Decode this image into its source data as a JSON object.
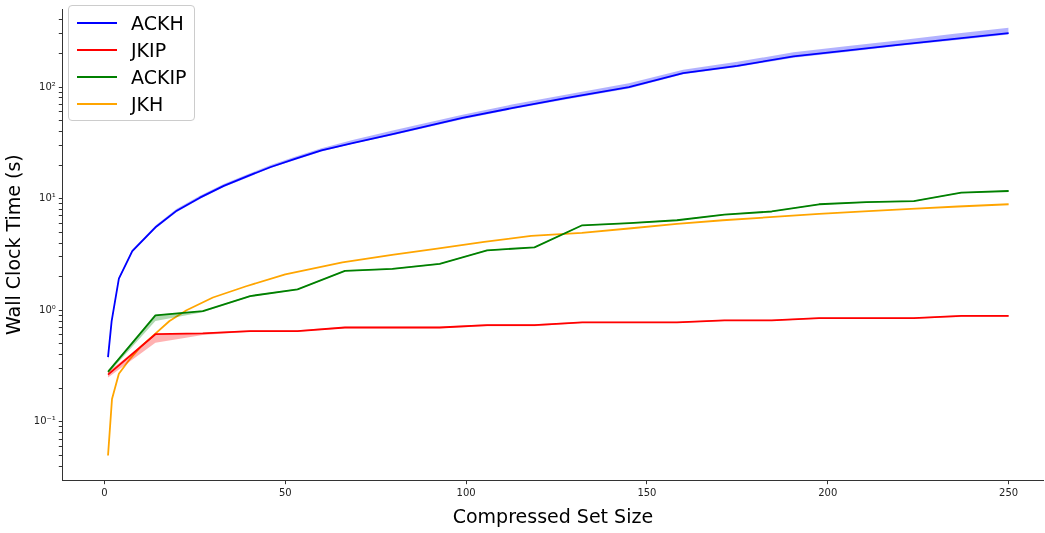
{
  "chart_data": {
    "type": "line",
    "xlabel": "Compressed Set Size",
    "ylabel": "Wall Clock Time (s)",
    "log": "y",
    "grid": false,
    "legend": "top left",
    "marker": "none",
    "line_style": "solid",
    "xlim": [
      -11.5,
      259.5
    ],
    "xticks": [
      0,
      50,
      100,
      150,
      200,
      250
    ],
    "ylim": [
      0.03,
      500
    ],
    "yticks": [
      {
        "value": 0.04,
        "label": null
      },
      {
        "value": 0.05,
        "label": null
      },
      {
        "value": 0.06,
        "label": null
      },
      {
        "value": 0.07,
        "label": null
      },
      {
        "value": 0.08,
        "label": null
      },
      {
        "value": 0.09,
        "label": null
      },
      {
        "value": 0.1,
        "label": "10⁻¹"
      },
      {
        "value": 0.2,
        "label": null
      },
      {
        "value": 0.3,
        "label": null
      },
      {
        "value": 0.4,
        "label": null
      },
      {
        "value": 0.5,
        "label": null
      },
      {
        "value": 0.6,
        "label": null
      },
      {
        "value": 0.7,
        "label": null
      },
      {
        "value": 0.8,
        "label": null
      },
      {
        "value": 0.9,
        "label": null
      },
      {
        "value": 1,
        "label": "10⁰"
      },
      {
        "value": 2,
        "label": null
      },
      {
        "value": 3,
        "label": null
      },
      {
        "value": 4,
        "label": null
      },
      {
        "value": 5,
        "label": null
      },
      {
        "value": 6,
        "label": null
      },
      {
        "value": 7,
        "label": null
      },
      {
        "value": 8,
        "label": null
      },
      {
        "value": 9,
        "label": null
      },
      {
        "value": 10,
        "label": "10¹"
      },
      {
        "value": 20,
        "label": null
      },
      {
        "value": 30,
        "label": null
      },
      {
        "value": 40,
        "label": null
      },
      {
        "value": 50,
        "label": null
      },
      {
        "value": 60,
        "label": null
      },
      {
        "value": 70,
        "label": null
      },
      {
        "value": 80,
        "label": null
      },
      {
        "value": 90,
        "label": null
      },
      {
        "value": 100,
        "label": "10²"
      },
      {
        "value": 200,
        "label": null
      },
      {
        "value": 300,
        "label": null
      },
      {
        "value": 400,
        "label": null
      }
    ],
    "series": [
      {
        "name": "ACKH",
        "color": "#0000ff",
        "x": [
          1,
          2,
          4,
          7.7,
          14.3,
          20,
          26.4,
          33,
          39.6,
          46,
          52.7,
          60,
          68.6,
          80,
          99,
          113,
          127.1,
          145,
          160,
          175,
          190.5,
          205,
          220,
          235,
          250
        ],
        "values": [
          0.38,
          0.8,
          1.92,
          3.38,
          5.6,
          7.8,
          10.2,
          13,
          15.9,
          19.2,
          22.7,
          27,
          31.5,
          38,
          52.8,
          65,
          79,
          100,
          133,
          155,
          188,
          212,
          240,
          270,
          304
        ],
        "lower": [
          0.35,
          0.78,
          1.88,
          3.3,
          5.45,
          7.6,
          9.9,
          12.7,
          15.5,
          18.8,
          22.2,
          26.5,
          31,
          37.2,
          51.5,
          63.5,
          77,
          97,
          130,
          151,
          183,
          206,
          234,
          263,
          296
        ],
        "upper": [
          0.4,
          0.82,
          1.98,
          3.5,
          5.8,
          8.1,
          10.6,
          13.5,
          16.5,
          20,
          23.7,
          28.3,
          33.5,
          41,
          56.5,
          70,
          85,
          108,
          143,
          168,
          205,
          232,
          263,
          300,
          340
        ]
      },
      {
        "name": "JKIP",
        "color": "#ff0000",
        "x": [
          1,
          14.1,
          27.2,
          40.3,
          53.4,
          66.5,
          79.6,
          92.7,
          105.8,
          118.9,
          132.1,
          145.2,
          158.3,
          171.4,
          184.5,
          197.6,
          210.7,
          223.8,
          236.9,
          250
        ],
        "values": [
          0.265,
          0.61,
          0.62,
          0.65,
          0.65,
          0.7,
          0.7,
          0.7,
          0.735,
          0.735,
          0.78,
          0.78,
          0.78,
          0.81,
          0.81,
          0.85,
          0.85,
          0.85,
          0.89,
          0.89
        ],
        "lower": [
          0.25,
          0.51,
          0.6,
          0.64,
          0.64,
          0.69,
          0.69,
          0.69,
          0.72,
          0.72,
          0.77,
          0.77,
          0.77,
          0.8,
          0.8,
          0.84,
          0.84,
          0.84,
          0.87,
          0.87
        ],
        "upper": [
          0.28,
          0.61,
          0.63,
          0.66,
          0.66,
          0.71,
          0.71,
          0.71,
          0.75,
          0.75,
          0.79,
          0.79,
          0.79,
          0.82,
          0.82,
          0.86,
          0.86,
          0.86,
          0.9,
          0.9
        ]
      },
      {
        "name": "ACKIP",
        "color": "#008000",
        "x": [
          1,
          14.1,
          27.2,
          40.3,
          53.4,
          66.5,
          79.6,
          92.7,
          105.8,
          118.9,
          132.1,
          145.2,
          158.3,
          171.4,
          184.5,
          197.6,
          210.7,
          223.8,
          236.9,
          250
        ],
        "values": [
          0.28,
          0.9,
          0.98,
          1.34,
          1.54,
          2.25,
          2.35,
          2.6,
          3.44,
          3.66,
          5.77,
          6.03,
          6.4,
          7.2,
          7.67,
          8.9,
          9.3,
          9.5,
          11.3,
          11.7
        ],
        "lower": [
          0.27,
          0.8,
          0.96,
          1.32,
          1.52,
          2.22,
          2.32,
          2.57,
          3.4,
          3.62,
          5.7,
          5.96,
          6.33,
          7.12,
          7.6,
          8.8,
          9.2,
          9.4,
          11.2,
          11.6
        ],
        "upper": [
          0.29,
          0.91,
          0.99,
          1.36,
          1.56,
          2.28,
          2.38,
          2.63,
          3.48,
          3.7,
          5.84,
          6.1,
          6.47,
          7.28,
          7.75,
          9,
          9.4,
          9.6,
          11.4,
          11.8
        ]
      },
      {
        "name": "JKH",
        "color": "#ffa500",
        "x": [
          1,
          2.1,
          4,
          6.9,
          10,
          13.4,
          18,
          22.7,
          30,
          39.2,
          50,
          65.8,
          80,
          92,
          105,
          118,
          132,
          145,
          158.3,
          171,
          185,
          197.6,
          210,
          223,
          236,
          250
        ],
        "values": [
          0.05,
          0.16,
          0.27,
          0.36,
          0.47,
          0.59,
          0.8,
          1.0,
          1.3,
          1.64,
          2.1,
          2.69,
          3.15,
          3.56,
          4.1,
          4.64,
          4.93,
          5.4,
          5.95,
          6.4,
          6.85,
          7.3,
          7.7,
          8.1,
          8.5,
          8.9
        ]
      }
    ]
  }
}
